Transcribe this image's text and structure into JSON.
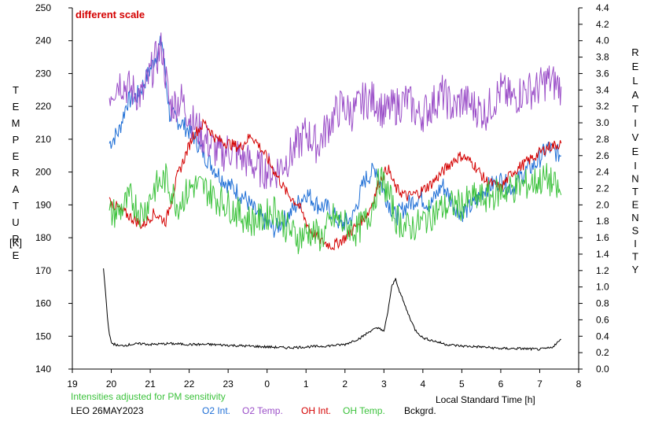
{
  "chart_data": {
    "type": "line",
    "note": "different scale",
    "y_left_label": "TEMPERATURE [K]",
    "y_left_label_chars": [
      "T",
      "E",
      "M",
      "P",
      "E",
      "R",
      "A",
      "T",
      "U",
      "R",
      "E"
    ],
    "y_left_unit": "[K]",
    "y_right_label": "RELATIVE INTENSITY",
    "y_right_label_chars_1": [
      "R",
      "E",
      "L",
      "A",
      "T",
      "I",
      "V",
      "E"
    ],
    "y_right_label_chars_2": [
      "I",
      "N",
      "T",
      "E",
      "N",
      "S",
      "I",
      "T",
      "Y"
    ],
    "xlabel": "Local Standard Time [h]",
    "adjust_note": "Intensities adjusted for PM sensitivity",
    "station_date": "LEO 26MAY2023",
    "ylim_left": [
      140,
      250
    ],
    "ylim_right": [
      0.0,
      4.4
    ],
    "xlim": [
      19,
      32
    ],
    "y_left_ticks": [
      "140",
      "150",
      "160",
      "170",
      "180",
      "190",
      "200",
      "210",
      "220",
      "230",
      "240",
      "250"
    ],
    "y_right_ticks": [
      "0.0",
      "0.2",
      "0.4",
      "0.6",
      "0.8",
      "1.0",
      "1.2",
      "1.4",
      "1.6",
      "1.8",
      "2.0",
      "2.2",
      "2.4",
      "2.6",
      "2.8",
      "3.0",
      "3.2",
      "3.4",
      "3.6",
      "3.8",
      "4.0",
      "4.2",
      "4.4"
    ],
    "x_ticks": [
      "19",
      "20",
      "21",
      "22",
      "23",
      "0",
      "1",
      "2",
      "3",
      "4",
      "5",
      "6",
      "7",
      "8"
    ],
    "series": [
      {
        "name": "O2 Int.",
        "color": "#1f6fd6",
        "axis": "right",
        "x": [
          19.95,
          20.2,
          20.4,
          20.7,
          21.0,
          21.3,
          21.5,
          21.8,
          22.1,
          22.4,
          22.8,
          23.0,
          23.4,
          23.8,
          24.2,
          24.6,
          25.0,
          25.3,
          25.6,
          25.9,
          26.2,
          26.5,
          26.8,
          27.0,
          27.3,
          27.6,
          27.9,
          28.2,
          28.5,
          28.8,
          29.0,
          29.3,
          29.6,
          30.0,
          30.3,
          30.6,
          30.9,
          31.2,
          31.55
        ],
        "y": [
          2.75,
          2.9,
          3.25,
          3.35,
          3.65,
          4.0,
          3.1,
          3.0,
          2.85,
          2.6,
          2.35,
          2.25,
          2.1,
          1.85,
          1.7,
          1.9,
          2.15,
          2.0,
          1.95,
          1.75,
          1.85,
          2.3,
          2.45,
          2.15,
          1.85,
          2.0,
          2.1,
          2.0,
          2.25,
          2.0,
          1.9,
          2.0,
          2.2,
          2.3,
          2.2,
          2.4,
          2.5,
          2.7,
          2.6
        ]
      },
      {
        "name": "O2 Temp.",
        "color": "#9b4fc8",
        "axis": "left",
        "x": [
          19.95,
          20.2,
          20.5,
          20.8,
          21.1,
          21.3,
          21.5,
          21.8,
          22.1,
          22.4,
          22.8,
          23.0,
          23.4,
          23.8,
          24.2,
          24.6,
          25.0,
          25.3,
          25.6,
          25.9,
          26.2,
          26.5,
          26.8,
          27.0,
          27.3,
          27.6,
          27.9,
          28.2,
          28.5,
          28.8,
          29.0,
          29.3,
          29.6,
          30.0,
          30.3,
          30.6,
          30.9,
          31.2,
          31.55
        ],
        "y": [
          224,
          228,
          225,
          223,
          233,
          238,
          220,
          222,
          215,
          210,
          205,
          207,
          204,
          201,
          200,
          205,
          212,
          208,
          215,
          220,
          218,
          222,
          222,
          218,
          220,
          222,
          217,
          220,
          224,
          219,
          222,
          220,
          218,
          225,
          222,
          225,
          225,
          228,
          226
        ]
      },
      {
        "name": "OH Int.",
        "color": "#d40000",
        "axis": "right",
        "x": [
          19.95,
          20.2,
          20.5,
          20.8,
          21.1,
          21.4,
          21.7,
          21.9,
          22.1,
          22.4,
          22.7,
          23.0,
          23.3,
          23.6,
          23.9,
          24.2,
          24.5,
          24.8,
          25.1,
          25.4,
          25.7,
          26.0,
          26.3,
          26.6,
          26.9,
          27.1,
          27.3,
          27.6,
          27.9,
          28.2,
          28.5,
          28.8,
          29.0,
          29.3,
          29.6,
          30.0,
          30.3,
          30.6,
          30.9,
          31.2,
          31.55
        ],
        "y": [
          2.05,
          1.95,
          1.85,
          1.75,
          1.9,
          1.8,
          2.35,
          2.6,
          2.85,
          3.0,
          2.8,
          2.75,
          2.7,
          2.85,
          2.65,
          2.4,
          2.15,
          2.0,
          1.7,
          1.55,
          1.5,
          1.6,
          1.75,
          1.9,
          2.3,
          2.45,
          2.2,
          2.1,
          2.15,
          2.25,
          2.4,
          2.55,
          2.6,
          2.5,
          2.3,
          2.2,
          2.4,
          2.5,
          2.6,
          2.7,
          2.75
        ]
      },
      {
        "name": "OH Temp.",
        "color": "#3cc23c",
        "axis": "left",
        "x": [
          19.95,
          20.2,
          20.5,
          20.8,
          21.1,
          21.4,
          21.7,
          21.9,
          22.1,
          22.4,
          22.7,
          23.0,
          23.3,
          23.6,
          23.9,
          24.2,
          24.5,
          24.8,
          25.1,
          25.4,
          25.7,
          26.0,
          26.3,
          26.6,
          26.9,
          27.1,
          27.3,
          27.6,
          27.9,
          28.2,
          28.5,
          28.8,
          29.0,
          29.3,
          29.6,
          30.0,
          30.3,
          30.6,
          30.9,
          31.2,
          31.55
        ],
        "y": [
          187,
          188,
          192,
          187,
          195,
          198,
          190,
          193,
          196,
          195,
          192,
          190,
          187,
          185,
          186,
          189,
          183,
          180,
          182,
          180,
          186,
          184,
          182,
          186,
          198,
          194,
          186,
          183,
          184,
          187,
          189,
          190,
          190,
          192,
          192,
          194,
          195,
          196,
          197,
          198,
          193
        ]
      },
      {
        "name": "Bckgrd.",
        "color": "#000000",
        "axis": "right",
        "x": [
          19.8,
          19.85,
          19.9,
          19.95,
          20.0,
          20.2,
          20.5,
          20.8,
          21.0,
          21.5,
          22.0,
          22.5,
          23.0,
          23.5,
          24.0,
          24.5,
          25.0,
          25.5,
          26.0,
          26.4,
          26.7,
          26.9,
          27.0,
          27.1,
          27.2,
          27.3,
          27.4,
          27.6,
          27.8,
          28.0,
          28.3,
          28.6,
          29.0,
          29.5,
          30.0,
          30.5,
          31.0,
          31.3,
          31.55
        ],
        "y": [
          1.22,
          0.95,
          0.65,
          0.42,
          0.32,
          0.28,
          0.3,
          0.31,
          0.3,
          0.31,
          0.3,
          0.3,
          0.29,
          0.28,
          0.27,
          0.26,
          0.27,
          0.28,
          0.3,
          0.38,
          0.48,
          0.5,
          0.45,
          0.7,
          1.0,
          1.1,
          0.95,
          0.7,
          0.48,
          0.38,
          0.34,
          0.3,
          0.28,
          0.27,
          0.25,
          0.25,
          0.24,
          0.26,
          0.36
        ]
      }
    ]
  }
}
